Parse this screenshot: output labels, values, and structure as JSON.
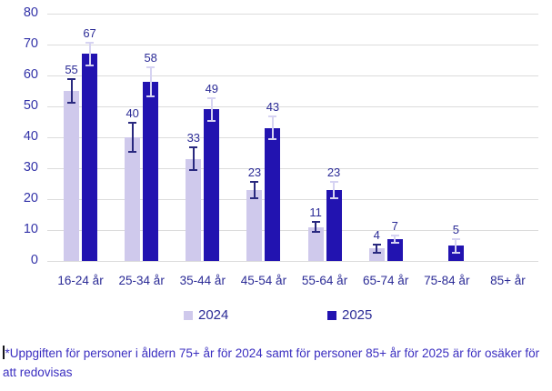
{
  "chart_data": {
    "type": "bar",
    "title": "",
    "xlabel": "",
    "ylabel": "",
    "categories": [
      "16-24 år",
      "25-34 år",
      "35-44 år",
      "45-54 år",
      "55-64 år",
      "65-74 år",
      "75-84 år",
      "85+ år"
    ],
    "series": [
      {
        "name": "2024",
        "color": "#cfc9ec",
        "error_color": "#29297f",
        "values": [
          55,
          40,
          33,
          23,
          11,
          4,
          null,
          null
        ],
        "ci": [
          4,
          5,
          4,
          3,
          2,
          1.5,
          null,
          null
        ]
      },
      {
        "name": "2025",
        "color": "#2213b0",
        "error_color": "#d6d3f2",
        "values": [
          67,
          58,
          49,
          43,
          23,
          7,
          5,
          null
        ],
        "ci": [
          4,
          5,
          4,
          4,
          3,
          1.5,
          2.5,
          null
        ]
      }
    ],
    "ylim": [
      0,
      80
    ],
    "ytick_step": 10,
    "grid": true,
    "legend_position": "bottom",
    "footnote": "*Uppgiften för personer i åldern 75+ år för 2024 samt för personer 85+ år för 2025 är för osäker för att redovisas"
  }
}
